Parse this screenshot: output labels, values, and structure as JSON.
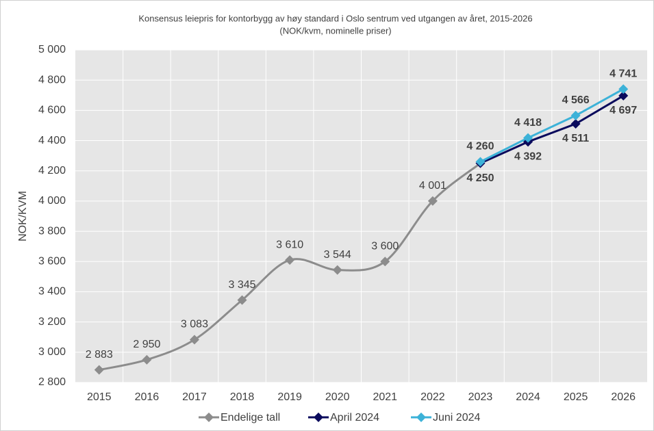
{
  "chart_data": {
    "type": "line",
    "title": "Konsensus leiepris for kontorbygg av høy standard i Oslo sentrum ved utgangen av året, 2015-2026",
    "subtitle": "(NOK/kvm, nominelle priser)",
    "y_label": "NOK/KVM",
    "categories": [
      "2015",
      "2016",
      "2017",
      "2018",
      "2019",
      "2020",
      "2021",
      "2022",
      "2023",
      "2024",
      "2025",
      "2026"
    ],
    "series": [
      {
        "name": "Endelige tall",
        "color": "#8c8c8c",
        "smooth": true,
        "values": [
          2883,
          2950,
          3083,
          3345,
          3610,
          3544,
          3600,
          4001,
          4250,
          null,
          null,
          null
        ],
        "value_labels": [
          "2 883",
          "2 950",
          "3 083",
          "3 345",
          "3 610",
          "3 544",
          "3 600",
          "4 001",
          null,
          null,
          null,
          null
        ]
      },
      {
        "name": "April 2024",
        "color": "#0a0a5c",
        "values": [
          null,
          null,
          null,
          null,
          null,
          null,
          null,
          null,
          4250,
          4392,
          4511,
          4697
        ],
        "value_labels": [
          null,
          null,
          null,
          null,
          null,
          null,
          null,
          null,
          "4 250",
          "4 392",
          "4 511",
          "4 697"
        ]
      },
      {
        "name": "Juni 2024",
        "color": "#3cb2d8",
        "values": [
          null,
          null,
          null,
          null,
          null,
          null,
          null,
          null,
          4260,
          4418,
          4566,
          4741
        ],
        "value_labels": [
          null,
          null,
          null,
          null,
          null,
          null,
          null,
          null,
          "4 260",
          "4 418",
          "4 566",
          "4 741"
        ]
      }
    ],
    "ylim": [
      2800,
      5000
    ],
    "yticks": [
      {
        "value": 2800,
        "label": "2 800"
      },
      {
        "value": 3000,
        "label": "3 000"
      },
      {
        "value": 3200,
        "label": "3 200"
      },
      {
        "value": 3400,
        "label": "3 400"
      },
      {
        "value": 3600,
        "label": "3 600"
      },
      {
        "value": 3800,
        "label": "3 800"
      },
      {
        "value": 4000,
        "label": "4 000"
      },
      {
        "value": 4200,
        "label": "4 200"
      },
      {
        "value": 4400,
        "label": "4 400"
      },
      {
        "value": 4600,
        "label": "4 600"
      },
      {
        "value": 4800,
        "label": "4 800"
      },
      {
        "value": 5000,
        "label": "5 000"
      }
    ],
    "grid": true,
    "legend": "bottom"
  }
}
